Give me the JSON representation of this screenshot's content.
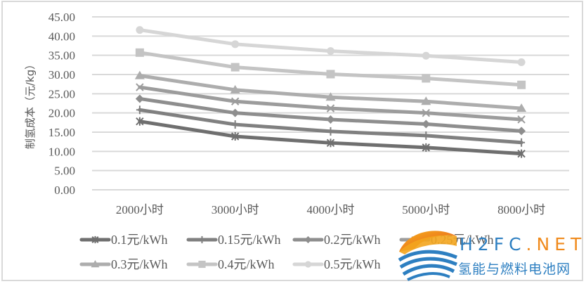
{
  "chart_data": {
    "type": "line",
    "title": "",
    "xlabel": "",
    "ylabel": "制氢成本（元/kg）",
    "ylim": [
      0,
      45
    ],
    "ytick_step": 5,
    "ytick_labels": [
      "0.00",
      "5.00",
      "10.00",
      "15.00",
      "20.00",
      "25.00",
      "30.00",
      "35.00",
      "40.00",
      "45.00"
    ],
    "categories": [
      "2000小时",
      "3000小时",
      "4000小时",
      "5000小时",
      "8000小时"
    ],
    "grid": "horizontal",
    "legend_position": "bottom",
    "series": [
      {
        "name": "0.1元/kWh",
        "marker": "asterisk",
        "color": "#6f6f6f",
        "values": [
          17.8,
          13.9,
          12.2,
          11.0,
          9.4
        ]
      },
      {
        "name": "0.15元/kWh",
        "marker": "plus",
        "color": "#808080",
        "values": [
          20.8,
          17.0,
          15.2,
          14.1,
          12.3
        ]
      },
      {
        "name": "0.2元/kWh",
        "marker": "diamond",
        "color": "#8e8e8e",
        "values": [
          23.7,
          20.0,
          18.3,
          17.1,
          15.3
        ]
      },
      {
        "name": "0.25元/kWh",
        "marker": "x",
        "color": "#9c9c9c",
        "values": [
          26.7,
          23.0,
          21.2,
          20.0,
          18.3
        ]
      },
      {
        "name": "0.3元/kWh",
        "marker": "triangle",
        "color": "#adadad",
        "values": [
          29.7,
          26.0,
          24.1,
          23.0,
          21.2
        ]
      },
      {
        "name": "0.4元/kWh",
        "marker": "square",
        "color": "#c4c4c4",
        "values": [
          35.7,
          31.9,
          30.1,
          29.0,
          27.3
        ]
      },
      {
        "name": "0.5元/kWh",
        "marker": "circle",
        "color": "#d6d6d6",
        "values": [
          41.6,
          37.9,
          36.1,
          34.9,
          33.2
        ]
      }
    ]
  },
  "watermark": {
    "name_en_main": "H2FC",
    "name_en_suffix": ".NET",
    "name_cn": "氢能与燃料电池网",
    "color_main": "#2d7fc1",
    "color_suffix": "#f08a1c"
  }
}
